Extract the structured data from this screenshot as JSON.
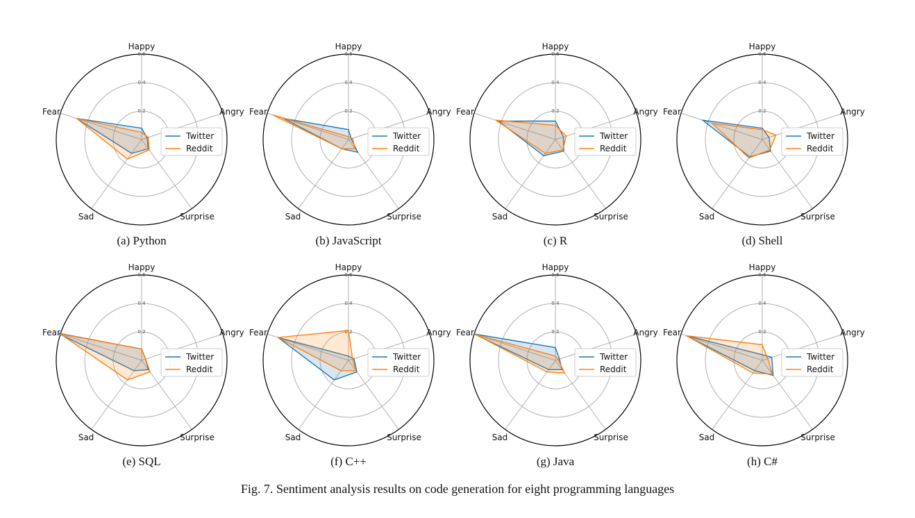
{
  "colors": {
    "twitter": "#1f77b4",
    "reddit": "#ff7f0e",
    "grid": "#b0b0b0",
    "text": "#111111"
  },
  "axes": [
    "Happy",
    "Angry",
    "Surprise",
    "Sad",
    "Fear"
  ],
  "ticks": [
    "0.2",
    "0.4",
    "0.6"
  ],
  "legend": [
    "Twitter",
    "Reddit"
  ],
  "figure_caption": "Fig. 7.  Sentiment analysis results on code generation for eight programming languages",
  "chart_data": [
    {
      "type": "radar",
      "caption": "(a)  Python",
      "rmax": 0.6,
      "categories": [
        "Happy",
        "Angry",
        "Surprise",
        "Sad",
        "Fear"
      ],
      "series": [
        {
          "name": "Twitter",
          "values": [
            0.08,
            0.04,
            0.08,
            0.12,
            0.48
          ]
        },
        {
          "name": "Reddit",
          "values": [
            0.05,
            0.05,
            0.09,
            0.17,
            0.48
          ]
        }
      ],
      "legend_position": "right"
    },
    {
      "type": "radar",
      "caption": "(b)  JavaScript",
      "rmax": 0.6,
      "categories": [
        "Happy",
        "Angry",
        "Surprise",
        "Sad",
        "Fear"
      ],
      "series": [
        {
          "name": "Twitter",
          "values": [
            0.07,
            0.02,
            0.11,
            0.08,
            0.48
          ]
        },
        {
          "name": "Reddit",
          "values": [
            0.02,
            0.03,
            0.08,
            0.08,
            0.56
          ]
        }
      ],
      "legend_position": "right"
    },
    {
      "type": "radar",
      "caption": "(c)  R",
      "rmax": 0.6,
      "categories": [
        "Happy",
        "Angry",
        "Surprise",
        "Sad",
        "Fear"
      ],
      "series": [
        {
          "name": "Twitter",
          "values": [
            0.13,
            0.06,
            0.1,
            0.14,
            0.42
          ]
        },
        {
          "name": "Reddit",
          "values": [
            0.1,
            0.08,
            0.09,
            0.12,
            0.44
          ]
        }
      ],
      "legend_position": "right"
    },
    {
      "type": "radar",
      "caption": "(d)  Shell",
      "rmax": 0.6,
      "categories": [
        "Happy",
        "Angry",
        "Surprise",
        "Sad",
        "Fear"
      ],
      "series": [
        {
          "name": "Twitter",
          "values": [
            0.08,
            0.05,
            0.1,
            0.15,
            0.44
          ]
        },
        {
          "name": "Reddit",
          "values": [
            0.07,
            0.1,
            0.09,
            0.16,
            0.37
          ]
        }
      ],
      "legend_position": "right"
    },
    {
      "type": "radar",
      "caption": "(e)  SQL",
      "rmax": 0.6,
      "categories": [
        "Happy",
        "Angry",
        "Surprise",
        "Sad",
        "Fear"
      ],
      "series": [
        {
          "name": "Twitter",
          "values": [
            0.08,
            0.03,
            0.08,
            0.09,
            0.62
          ]
        },
        {
          "name": "Reddit",
          "values": [
            0.08,
            0.03,
            0.1,
            0.17,
            0.6
          ]
        }
      ],
      "legend_position": "right"
    },
    {
      "type": "radar",
      "caption": "(f)  C++",
      "rmax": 0.6,
      "categories": [
        "Happy",
        "Angry",
        "Surprise",
        "Sad",
        "Fear"
      ],
      "series": [
        {
          "name": "Twitter",
          "values": [
            0.03,
            0.04,
            0.1,
            0.17,
            0.52
          ]
        },
        {
          "name": "Reddit",
          "values": [
            0.21,
            0.03,
            0.09,
            0.09,
            0.52
          ]
        }
      ],
      "legend_position": "right"
    },
    {
      "type": "radar",
      "caption": "(g)  Java",
      "rmax": 0.6,
      "categories": [
        "Happy",
        "Angry",
        "Surprise",
        "Sad",
        "Fear"
      ],
      "series": [
        {
          "name": "Twitter",
          "values": [
            0.09,
            0.03,
            0.08,
            0.08,
            0.6
          ]
        },
        {
          "name": "Reddit",
          "values": [
            0.03,
            0.02,
            0.11,
            0.1,
            0.59
          ]
        }
      ],
      "legend_position": "right"
    },
    {
      "type": "radar",
      "caption": "(h)  C#",
      "rmax": 0.6,
      "categories": [
        "Happy",
        "Angry",
        "Surprise",
        "Sad",
        "Fear"
      ],
      "series": [
        {
          "name": "Twitter",
          "values": [
            0.04,
            0.07,
            0.13,
            0.09,
            0.56
          ]
        },
        {
          "name": "Reddit",
          "values": [
            0.11,
            0.04,
            0.12,
            0.11,
            0.56
          ]
        }
      ],
      "legend_position": "right"
    }
  ]
}
